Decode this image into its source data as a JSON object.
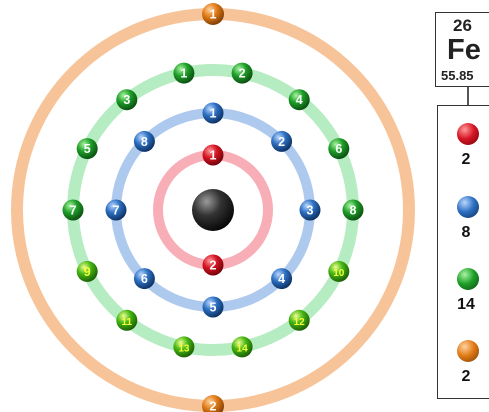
{
  "element": {
    "atomic_number": "26",
    "symbol": "Fe",
    "atomic_mass": "55.85"
  },
  "shells": [
    {
      "color": "#f8aeb6",
      "electrons": 2
    },
    {
      "color": "#aec9ee",
      "electrons": 8
    },
    {
      "color": "#b6ecc2",
      "electrons": 14
    },
    {
      "color": "#f7c49a",
      "electrons": 2
    }
  ],
  "electron_colors": [
    "#d61424",
    "#2c6fc1",
    "#1e9e28",
    "#e07a16"
  ],
  "nucleus_color": "#222222",
  "legend": [
    {
      "color_name": "red",
      "count": "2"
    },
    {
      "color_name": "blue",
      "count": "8"
    },
    {
      "color_name": "green",
      "count": "14"
    },
    {
      "color_name": "orange",
      "count": "2"
    }
  ]
}
